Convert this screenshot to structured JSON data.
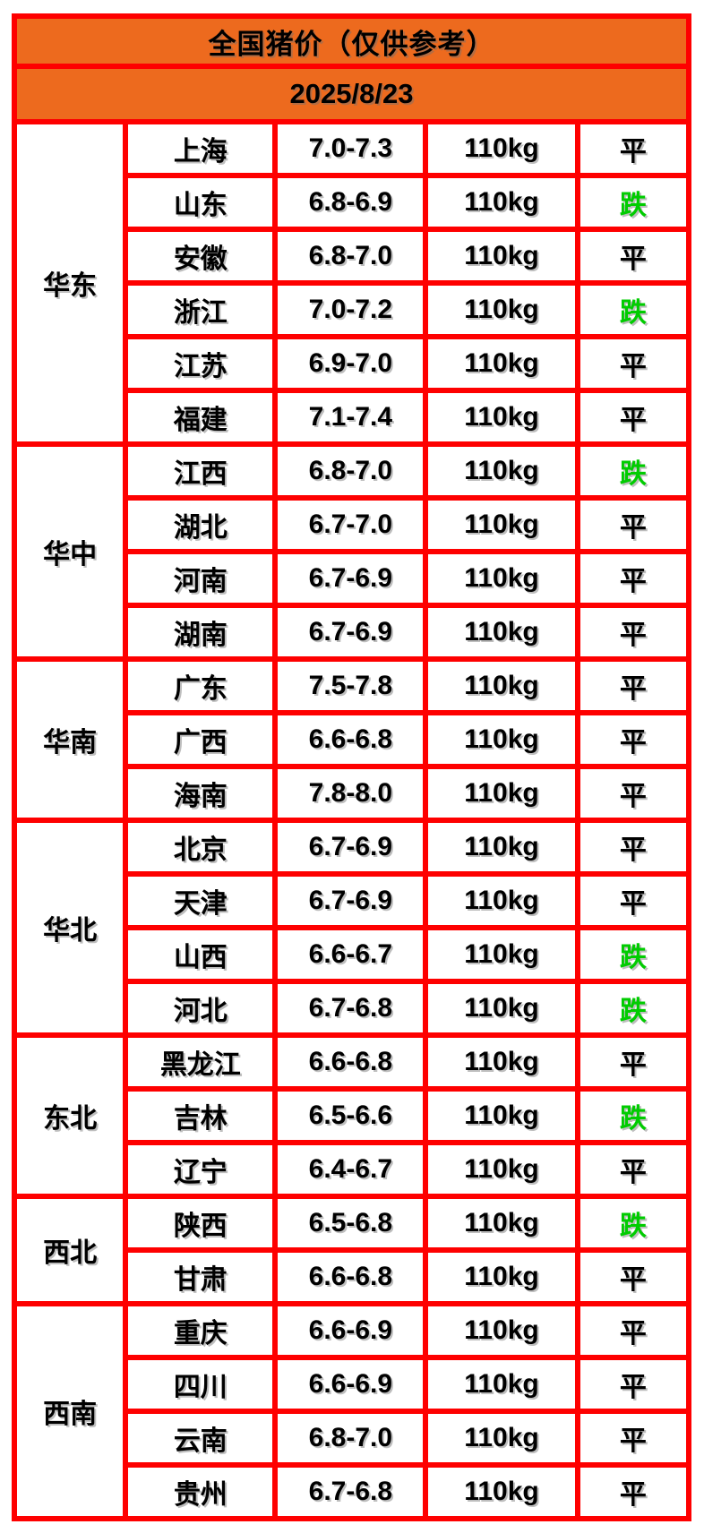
{
  "colors": {
    "header_bg": "#ed6a1e",
    "border_red": "#fe0000",
    "text_black": "#000000",
    "status_down_green": "#00cc00",
    "background": "#ffffff"
  },
  "status_colors": {
    "跌": "#00cc00",
    "平": "#000000"
  },
  "chart_data": {
    "type": "table",
    "title": "全国猪价（仅供参考）",
    "date": "2025/8/23",
    "layout": {
      "columns": 5,
      "grid_on": true,
      "header_rows": [
        "title",
        "date"
      ]
    },
    "regions": [
      {
        "name": "华东",
        "rows": [
          {
            "province": "上海",
            "price": "7.0-7.3",
            "weight": "110kg",
            "status": "平"
          },
          {
            "province": "山东",
            "price": "6.8-6.9",
            "weight": "110kg",
            "status": "跌"
          },
          {
            "province": "安徽",
            "price": "6.8-7.0",
            "weight": "110kg",
            "status": "平"
          },
          {
            "province": "浙江",
            "price": "7.0-7.2",
            "weight": "110kg",
            "status": "跌"
          },
          {
            "province": "江苏",
            "price": "6.9-7.0",
            "weight": "110kg",
            "status": "平"
          },
          {
            "province": "福建",
            "price": "7.1-7.4",
            "weight": "110kg",
            "status": "平"
          }
        ]
      },
      {
        "name": "华中",
        "rows": [
          {
            "province": "江西",
            "price": "6.8-7.0",
            "weight": "110kg",
            "status": "跌"
          },
          {
            "province": "湖北",
            "price": "6.7-7.0",
            "weight": "110kg",
            "status": "平"
          },
          {
            "province": "河南",
            "price": "6.7-6.9",
            "weight": "110kg",
            "status": "平"
          },
          {
            "province": "湖南",
            "price": "6.7-6.9",
            "weight": "110kg",
            "status": "平"
          }
        ]
      },
      {
        "name": "华南",
        "rows": [
          {
            "province": "广东",
            "price": "7.5-7.8",
            "weight": "110kg",
            "status": "平"
          },
          {
            "province": "广西",
            "price": "6.6-6.8",
            "weight": "110kg",
            "status": "平"
          },
          {
            "province": "海南",
            "price": "7.8-8.0",
            "weight": "110kg",
            "status": "平"
          }
        ]
      },
      {
        "name": "华北",
        "rows": [
          {
            "province": "北京",
            "price": "6.7-6.9",
            "weight": "110kg",
            "status": "平"
          },
          {
            "province": "天津",
            "price": "6.7-6.9",
            "weight": "110kg",
            "status": "平"
          },
          {
            "province": "山西",
            "price": "6.6-6.7",
            "weight": "110kg",
            "status": "跌"
          },
          {
            "province": "河北",
            "price": "6.7-6.8",
            "weight": "110kg",
            "status": "跌"
          }
        ]
      },
      {
        "name": "东北",
        "rows": [
          {
            "province": "黑龙江",
            "price": "6.6-6.8",
            "weight": "110kg",
            "status": "平"
          },
          {
            "province": "吉林",
            "price": "6.5-6.6",
            "weight": "110kg",
            "status": "跌"
          },
          {
            "province": "辽宁",
            "price": "6.4-6.7",
            "weight": "110kg",
            "status": "平"
          }
        ]
      },
      {
        "name": "西北",
        "rows": [
          {
            "province": "陕西",
            "price": "6.5-6.8",
            "weight": "110kg",
            "status": "跌"
          },
          {
            "province": "甘肃",
            "price": "6.6-6.8",
            "weight": "110kg",
            "status": "平"
          }
        ]
      },
      {
        "name": "西南",
        "rows": [
          {
            "province": "重庆",
            "price": "6.6-6.9",
            "weight": "110kg",
            "status": "平"
          },
          {
            "province": "四川",
            "price": "6.6-6.9",
            "weight": "110kg",
            "status": "平"
          },
          {
            "province": "云南",
            "price": "6.8-7.0",
            "weight": "110kg",
            "status": "平"
          },
          {
            "province": "贵州",
            "price": "6.7-6.8",
            "weight": "110kg",
            "status": "平"
          }
        ]
      }
    ]
  }
}
